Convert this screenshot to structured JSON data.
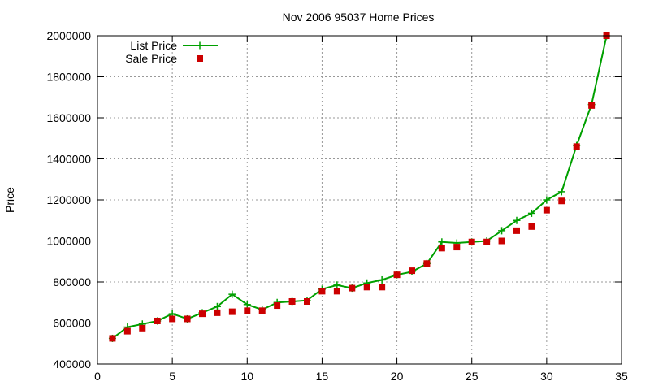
{
  "chart_data": {
    "type": "line",
    "title": "Nov 2006 95037 Home Prices",
    "xlabel": "",
    "ylabel": "Price",
    "xlim": [
      0,
      35
    ],
    "ylim": [
      400000,
      2000000
    ],
    "xticks": [
      0,
      5,
      10,
      15,
      20,
      25,
      30,
      35
    ],
    "yticks": [
      400000,
      600000,
      800000,
      1000000,
      1200000,
      1400000,
      1600000,
      1800000,
      2000000
    ],
    "grid": true,
    "legend_position": "top-left",
    "series": [
      {
        "name": "List Price",
        "style": "line-plus",
        "color": "#00a000",
        "x": [
          1,
          2,
          3,
          4,
          5,
          6,
          7,
          8,
          9,
          10,
          11,
          12,
          13,
          14,
          15,
          16,
          17,
          18,
          19,
          20,
          21,
          22,
          23,
          24,
          25,
          26,
          27,
          28,
          29,
          30,
          31,
          32,
          33,
          34
        ],
        "y": [
          525000,
          580000,
          595000,
          610000,
          645000,
          620000,
          650000,
          680000,
          740000,
          690000,
          665000,
          700000,
          705000,
          710000,
          765000,
          785000,
          770000,
          795000,
          810000,
          835000,
          850000,
          890000,
          995000,
          990000,
          995000,
          1000000,
          1050000,
          1100000,
          1135000,
          1200000,
          1240000,
          1465000,
          1665000,
          2000000
        ]
      },
      {
        "name": "Sale Price",
        "style": "square-marker",
        "color": "#cc0000",
        "x": [
          1,
          2,
          3,
          4,
          5,
          6,
          7,
          8,
          9,
          10,
          11,
          12,
          13,
          14,
          15,
          16,
          17,
          18,
          19,
          20,
          21,
          22,
          23,
          24,
          25,
          26,
          27,
          28,
          29,
          30,
          31,
          32,
          33,
          34
        ],
        "y": [
          525000,
          560000,
          575000,
          610000,
          620000,
          620000,
          645000,
          650000,
          655000,
          660000,
          660000,
          685000,
          705000,
          705000,
          755000,
          755000,
          770000,
          775000,
          775000,
          835000,
          855000,
          890000,
          965000,
          970000,
          995000,
          995000,
          1000000,
          1050000,
          1070000,
          1150000,
          1195000,
          1460000,
          1660000,
          2000000
        ]
      }
    ]
  }
}
